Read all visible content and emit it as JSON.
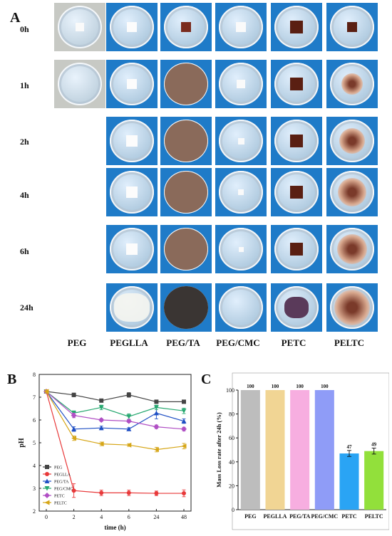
{
  "panels": {
    "a": "A",
    "b": "B",
    "c": "C"
  },
  "time_labels": [
    "0h",
    "1h",
    "2h",
    "4h",
    "6h",
    "24h"
  ],
  "sample_labels": [
    "PEG",
    "PEGLLA",
    "PEG/TA",
    "PEG/CMC",
    "PETC",
    "PELTC"
  ],
  "chart_data": [
    {
      "type": "line",
      "title": "",
      "xlabel": "time (h)",
      "ylabel": "pH",
      "categories": [
        "0",
        "2",
        "4",
        "6",
        "24",
        "48"
      ],
      "ylim": [
        2,
        8
      ],
      "yticks": [
        "2",
        "3",
        "4",
        "5",
        "6",
        "7",
        "8"
      ],
      "legend_position": "bottom-left",
      "series": [
        {
          "name": "PEG",
          "color": "#444444",
          "marker": "square",
          "values": [
            7.25,
            7.1,
            6.85,
            7.1,
            6.8,
            6.8
          ],
          "errors": [
            0.08,
            0.08,
            0.06,
            0.1,
            0.06,
            0.06
          ]
        },
        {
          "name": "PEGLLA",
          "color": "#e8393a",
          "marker": "circle",
          "values": [
            7.25,
            2.9,
            2.8,
            2.8,
            2.78,
            2.78
          ],
          "errors": [
            0.08,
            0.3,
            0.12,
            0.12,
            0.1,
            0.15
          ]
        },
        {
          "name": "PEG/TA",
          "color": "#1f4fc4",
          "marker": "triangle",
          "values": [
            7.25,
            5.6,
            5.65,
            5.6,
            6.3,
            5.95
          ],
          "errors": [
            0.08,
            0.1,
            0.08,
            0.06,
            0.25,
            0.1
          ]
        },
        {
          "name": "PEG/CMC",
          "color": "#27a870",
          "marker": "triangle-down",
          "values": [
            7.25,
            6.3,
            6.55,
            6.15,
            6.55,
            6.4
          ],
          "errors": [
            0.08,
            0.1,
            0.1,
            0.12,
            0.1,
            0.12
          ]
        },
        {
          "name": "PETC",
          "color": "#b04fc4",
          "marker": "diamond",
          "values": [
            7.25,
            6.2,
            6.0,
            5.95,
            5.7,
            5.6
          ],
          "errors": [
            0.08,
            0.1,
            0.06,
            0.06,
            0.08,
            0.08
          ]
        },
        {
          "name": "PELTC",
          "color": "#d6a617",
          "marker": "triangle-left",
          "values": [
            7.25,
            5.2,
            4.95,
            4.9,
            4.7,
            4.85
          ],
          "errors": [
            0.08,
            0.1,
            0.08,
            0.06,
            0.1,
            0.12
          ]
        }
      ]
    },
    {
      "type": "bar",
      "title": "",
      "xlabel": "",
      "ylabel": "Mass Loss rate after 24h (%)",
      "categories": [
        "PEG",
        "PEGLLA",
        "PEG/TA",
        "PEG/CMC",
        "PETC",
        "PELTC"
      ],
      "values": [
        100,
        100,
        100,
        100,
        47,
        49
      ],
      "errors": [
        0,
        0,
        0,
        0,
        2.5,
        2.5
      ],
      "labels": [
        "100",
        "100",
        "100",
        "100",
        "47",
        "49"
      ],
      "colors": [
        "#bdbdbd",
        "#f1d594",
        "#f7aee0",
        "#8f9cf7",
        "#2aa4f4",
        "#92e03b"
      ],
      "ylim": [
        0,
        100
      ],
      "yticks": [
        "0",
        "20",
        "40",
        "60",
        "80",
        "100"
      ]
    }
  ]
}
